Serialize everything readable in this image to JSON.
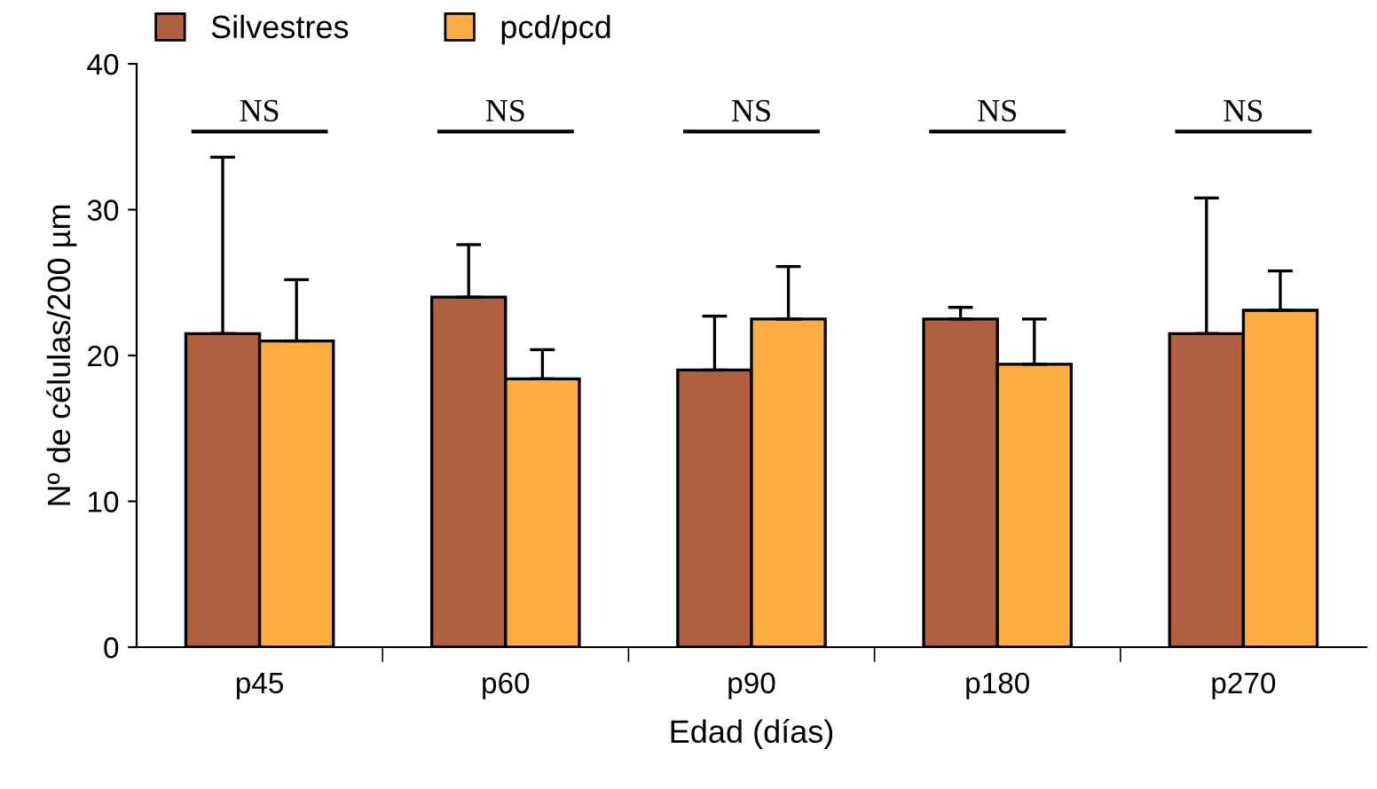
{
  "chart_data": {
    "type": "bar",
    "xlabel": "Edad (días)",
    "ylabel": "Nº de células/200 µm",
    "categories": [
      "p45",
      "p60",
      "p90",
      "p180",
      "p270"
    ],
    "series": [
      {
        "name": "Silvestres",
        "color": "#b0603e",
        "values": [
          21.5,
          24.0,
          19.0,
          22.5,
          21.5
        ],
        "errors": [
          [
            21.5,
            33.6
          ],
          [
            24.0,
            27.6
          ],
          [
            19.0,
            22.7
          ],
          [
            22.5,
            23.3
          ],
          [
            21.5,
            30.8
          ]
        ]
      },
      {
        "name": "pcd/pcd",
        "color": "#ffad40",
        "values": [
          21.0,
          18.4,
          22.5,
          19.4,
          23.1
        ],
        "errors": [
          [
            21.0,
            25.2
          ],
          [
            18.4,
            20.4
          ],
          [
            22.5,
            26.1
          ],
          [
            19.4,
            22.5
          ],
          [
            23.1,
            25.8
          ]
        ]
      }
    ],
    "ylim": [
      0,
      40
    ],
    "yticks": [
      0,
      10,
      20,
      30,
      40
    ],
    "grid": false,
    "legend": "top left",
    "annotations": [
      "NS",
      "NS",
      "NS",
      "NS",
      "NS"
    ]
  }
}
